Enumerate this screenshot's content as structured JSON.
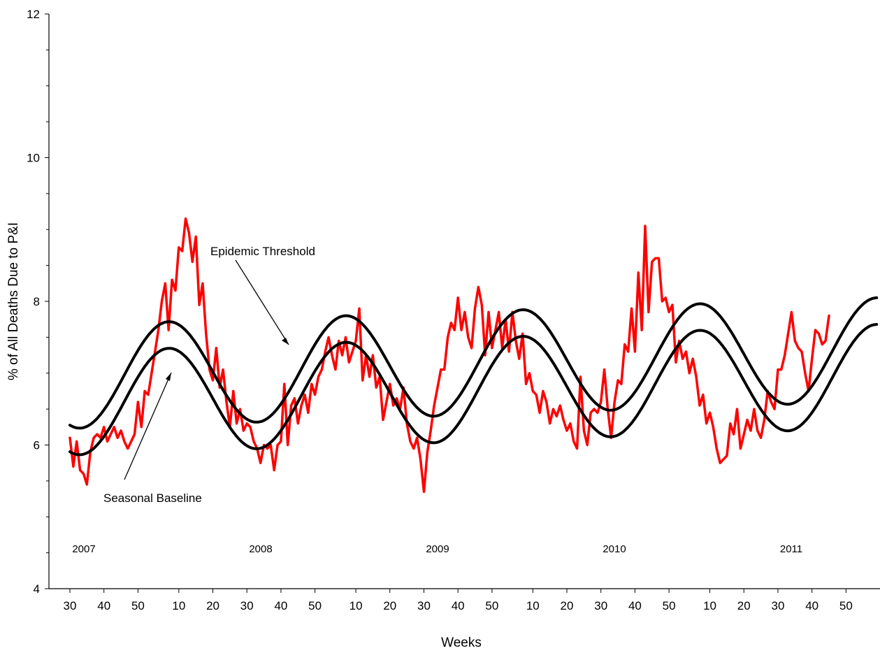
{
  "chart_data": {
    "type": "line",
    "title": "",
    "xlabel": "Weeks",
    "ylabel": "% of All Deaths Due to P&I",
    "ylim": [
      4,
      12
    ],
    "y_ticks": [
      "4",
      "6",
      "8",
      "10",
      "12"
    ],
    "x_range_weeks": [
      0,
      237
    ],
    "x_tick_labels": [
      "30",
      "40",
      "50",
      "10",
      "20",
      "30",
      "40",
      "50",
      "10",
      "20",
      "30",
      "40",
      "50",
      "10",
      "20",
      "30",
      "40",
      "50",
      "10",
      "20",
      "30",
      "40",
      "50",
      "10"
    ],
    "year_labels": [
      "2007",
      "2008",
      "2009",
      "2010",
      "2011"
    ],
    "grid": false,
    "legend": "none",
    "annotations": [
      {
        "label": "Epidemic Threshold",
        "target": "epidemic_threshold"
      },
      {
        "label": "Seasonal Baseline",
        "target": "seasonal_baseline"
      }
    ],
    "series": [
      {
        "key": "pi_mortality",
        "color": "#ff0000",
        "points": [
          [
            0,
            6.1
          ],
          [
            1,
            5.7
          ],
          [
            2,
            6.05
          ],
          [
            3,
            5.65
          ],
          [
            4,
            5.6
          ],
          [
            5,
            5.45
          ],
          [
            6,
            5.9
          ],
          [
            7,
            6.1
          ],
          [
            8,
            6.15
          ],
          [
            9,
            6.1
          ],
          [
            10,
            6.25
          ],
          [
            11,
            6.05
          ],
          [
            12,
            6.15
          ],
          [
            13,
            6.25
          ],
          [
            14,
            6.1
          ],
          [
            15,
            6.2
          ],
          [
            16,
            6.05
          ],
          [
            17,
            5.95
          ],
          [
            18,
            6.05
          ],
          [
            19,
            6.15
          ],
          [
            20,
            6.6
          ],
          [
            21,
            6.25
          ],
          [
            22,
            6.75
          ],
          [
            23,
            6.7
          ],
          [
            24,
            7.0
          ],
          [
            25,
            7.3
          ],
          [
            26,
            7.6
          ],
          [
            27,
            8.0
          ],
          [
            28,
            8.25
          ],
          [
            29,
            7.6
          ],
          [
            30,
            8.3
          ],
          [
            31,
            8.15
          ],
          [
            32,
            8.75
          ],
          [
            33,
            8.7
          ],
          [
            34,
            9.15
          ],
          [
            35,
            8.95
          ],
          [
            36,
            8.55
          ],
          [
            37,
            8.9
          ],
          [
            38,
            7.95
          ],
          [
            39,
            8.25
          ],
          [
            40,
            7.55
          ],
          [
            41,
            7.05
          ],
          [
            42,
            6.9
          ],
          [
            43,
            7.35
          ],
          [
            44,
            6.8
          ],
          [
            45,
            7.05
          ],
          [
            46,
            6.6
          ],
          [
            47,
            6.25
          ],
          [
            48,
            6.75
          ],
          [
            49,
            6.3
          ],
          [
            50,
            6.5
          ],
          [
            51,
            6.2
          ],
          [
            52,
            6.3
          ],
          [
            53,
            6.25
          ],
          [
            54,
            6.05
          ],
          [
            55,
            5.95
          ],
          [
            56,
            5.75
          ],
          [
            57,
            6.0
          ],
          [
            58,
            5.95
          ],
          [
            59,
            6.0
          ],
          [
            60,
            5.65
          ],
          [
            61,
            6.0
          ],
          [
            62,
            6.05
          ],
          [
            63,
            6.85
          ],
          [
            64,
            6.0
          ],
          [
            65,
            6.55
          ],
          [
            66,
            6.65
          ],
          [
            67,
            6.3
          ],
          [
            68,
            6.55
          ],
          [
            69,
            6.7
          ],
          [
            70,
            6.45
          ],
          [
            71,
            6.85
          ],
          [
            72,
            6.7
          ],
          [
            73,
            6.95
          ],
          [
            74,
            7.05
          ],
          [
            75,
            7.3
          ],
          [
            76,
            7.5
          ],
          [
            77,
            7.25
          ],
          [
            78,
            7.05
          ],
          [
            79,
            7.45
          ],
          [
            80,
            7.25
          ],
          [
            81,
            7.5
          ],
          [
            82,
            7.15
          ],
          [
            83,
            7.3
          ],
          [
            84,
            7.45
          ],
          [
            85,
            7.9
          ],
          [
            86,
            6.9
          ],
          [
            87,
            7.25
          ],
          [
            88,
            6.95
          ],
          [
            89,
            7.25
          ],
          [
            90,
            6.8
          ],
          [
            91,
            6.95
          ],
          [
            92,
            6.35
          ],
          [
            93,
            6.6
          ],
          [
            94,
            6.85
          ],
          [
            95,
            6.55
          ],
          [
            96,
            6.65
          ],
          [
            97,
            6.5
          ],
          [
            98,
            6.8
          ],
          [
            99,
            6.3
          ],
          [
            100,
            6.05
          ],
          [
            101,
            5.95
          ],
          [
            102,
            6.1
          ],
          [
            103,
            5.8
          ],
          [
            104,
            5.35
          ],
          [
            105,
            5.9
          ],
          [
            106,
            6.2
          ],
          [
            107,
            6.55
          ],
          [
            108,
            6.8
          ],
          [
            109,
            7.05
          ],
          [
            110,
            7.05
          ],
          [
            111,
            7.5
          ],
          [
            112,
            7.7
          ],
          [
            113,
            7.6
          ],
          [
            114,
            8.05
          ],
          [
            115,
            7.6
          ],
          [
            116,
            7.85
          ],
          [
            117,
            7.5
          ],
          [
            118,
            7.35
          ],
          [
            119,
            7.9
          ],
          [
            120,
            8.2
          ],
          [
            121,
            7.95
          ],
          [
            122,
            7.25
          ],
          [
            123,
            7.85
          ],
          [
            124,
            7.35
          ],
          [
            125,
            7.6
          ],
          [
            126,
            7.85
          ],
          [
            127,
            7.35
          ],
          [
            128,
            7.75
          ],
          [
            129,
            7.3
          ],
          [
            130,
            7.85
          ],
          [
            131,
            7.45
          ],
          [
            132,
            7.2
          ],
          [
            133,
            7.55
          ],
          [
            134,
            6.85
          ],
          [
            135,
            7.0
          ],
          [
            136,
            6.75
          ],
          [
            137,
            6.7
          ],
          [
            138,
            6.45
          ],
          [
            139,
            6.75
          ],
          [
            140,
            6.6
          ],
          [
            141,
            6.3
          ],
          [
            142,
            6.5
          ],
          [
            143,
            6.4
          ],
          [
            144,
            6.55
          ],
          [
            145,
            6.35
          ],
          [
            146,
            6.2
          ],
          [
            147,
            6.3
          ],
          [
            148,
            6.05
          ],
          [
            149,
            5.95
          ],
          [
            150,
            6.95
          ],
          [
            151,
            6.2
          ],
          [
            152,
            6.0
          ],
          [
            153,
            6.45
          ],
          [
            154,
            6.5
          ],
          [
            155,
            6.45
          ],
          [
            156,
            6.6
          ],
          [
            157,
            7.05
          ],
          [
            158,
            6.5
          ],
          [
            159,
            6.1
          ],
          [
            160,
            6.6
          ],
          [
            161,
            6.9
          ],
          [
            162,
            6.85
          ],
          [
            163,
            7.4
          ],
          [
            164,
            7.3
          ],
          [
            165,
            7.9
          ],
          [
            166,
            7.3
          ],
          [
            167,
            8.4
          ],
          [
            168,
            7.6
          ],
          [
            169,
            9.05
          ],
          [
            170,
            7.85
          ],
          [
            171,
            8.55
          ],
          [
            172,
            8.6
          ],
          [
            173,
            8.6
          ],
          [
            174,
            8.0
          ],
          [
            175,
            8.05
          ],
          [
            176,
            7.85
          ],
          [
            177,
            7.95
          ],
          [
            178,
            7.15
          ],
          [
            179,
            7.45
          ],
          [
            180,
            7.2
          ],
          [
            181,
            7.3
          ],
          [
            182,
            7.0
          ],
          [
            183,
            7.2
          ],
          [
            184,
            6.95
          ],
          [
            185,
            6.55
          ],
          [
            186,
            6.7
          ],
          [
            187,
            6.3
          ],
          [
            188,
            6.45
          ],
          [
            189,
            6.25
          ],
          [
            190,
            5.95
          ],
          [
            191,
            5.75
          ],
          [
            192,
            5.8
          ],
          [
            193,
            5.85
          ],
          [
            194,
            6.3
          ],
          [
            195,
            6.15
          ],
          [
            196,
            6.5
          ],
          [
            197,
            5.95
          ],
          [
            198,
            6.15
          ],
          [
            199,
            6.35
          ],
          [
            200,
            6.2
          ],
          [
            201,
            6.5
          ],
          [
            202,
            6.2
          ],
          [
            203,
            6.1
          ],
          [
            204,
            6.35
          ],
          [
            205,
            6.75
          ],
          [
            206,
            6.6
          ],
          [
            207,
            6.5
          ],
          [
            208,
            7.05
          ],
          [
            209,
            7.05
          ],
          [
            210,
            7.25
          ],
          [
            211,
            7.55
          ],
          [
            212,
            7.85
          ],
          [
            213,
            7.45
          ],
          [
            214,
            7.35
          ],
          [
            215,
            7.3
          ],
          [
            216,
            7.0
          ],
          [
            217,
            6.75
          ],
          [
            218,
            7.2
          ],
          [
            219,
            7.6
          ],
          [
            220,
            7.55
          ],
          [
            221,
            7.4
          ],
          [
            222,
            7.45
          ],
          [
            223,
            7.8
          ]
        ]
      },
      {
        "key": "epidemic_threshold",
        "color": "#000000",
        "formula": "sinusoid",
        "mean": 6.95,
        "trend_per_week": 0.0016,
        "amplitude": 0.72,
        "peak_week": 29,
        "period_weeks": 52
      },
      {
        "key": "seasonal_baseline",
        "color": "#000000",
        "formula": "sinusoid",
        "mean": 6.58,
        "trend_per_week": 0.0016,
        "amplitude": 0.72,
        "peak_week": 29,
        "period_weeks": 52
      }
    ]
  }
}
